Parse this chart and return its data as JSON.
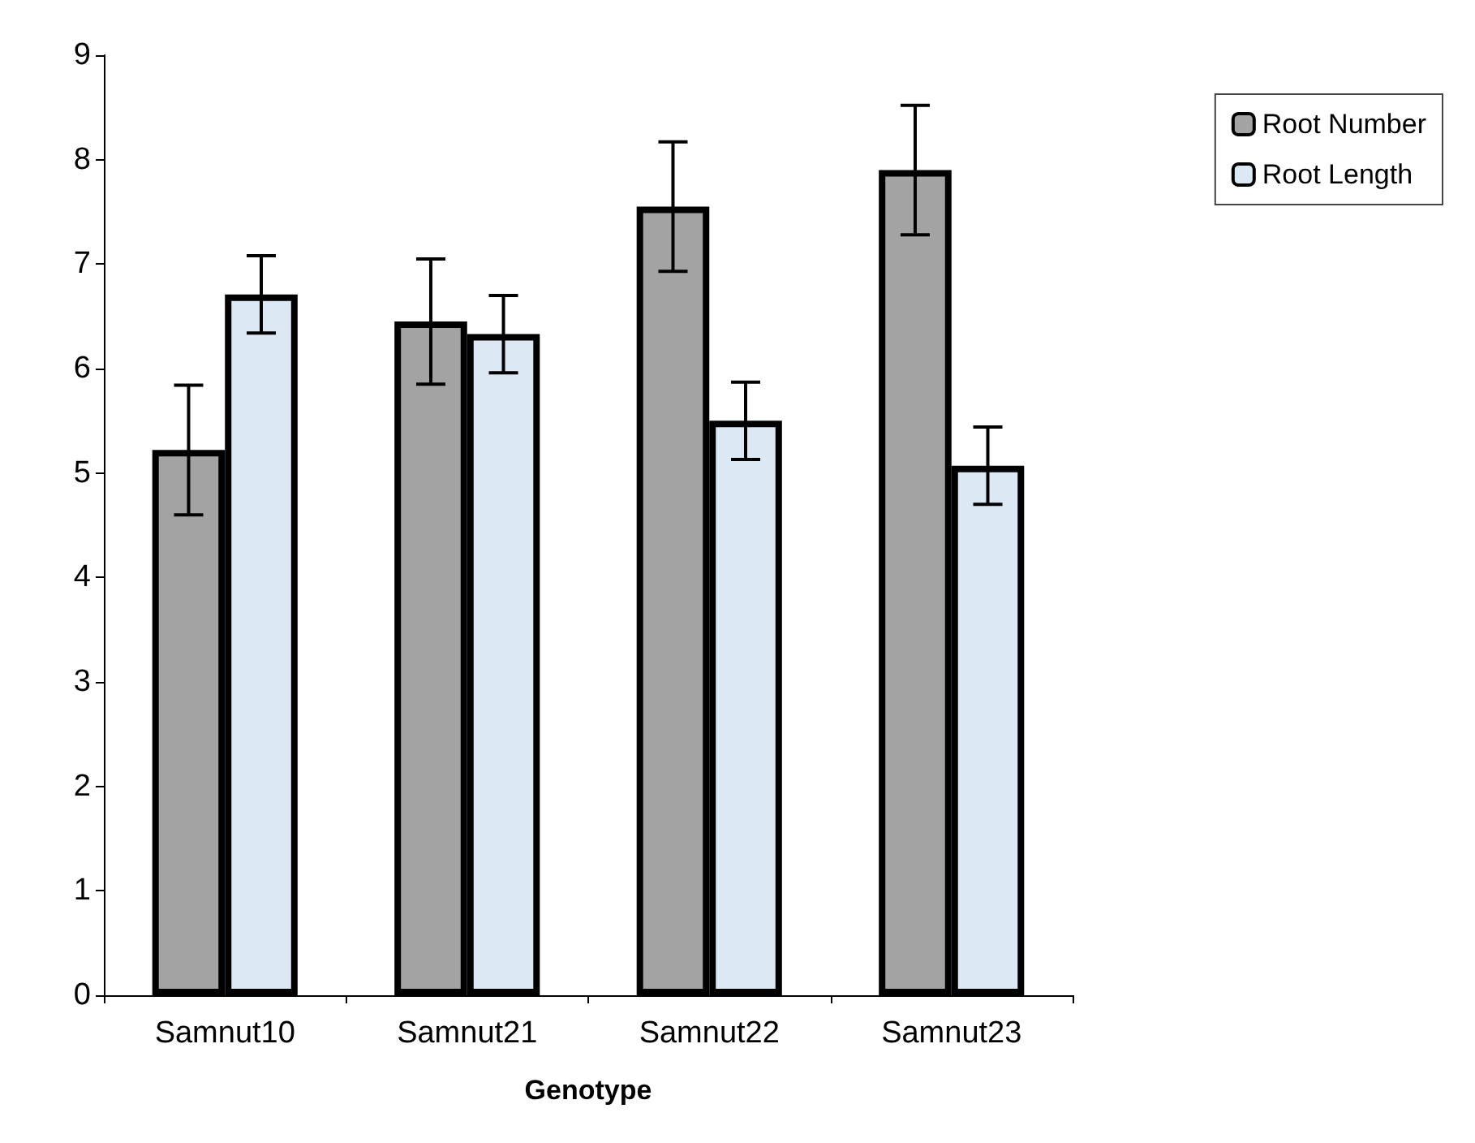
{
  "chart_data": {
    "type": "bar",
    "xlabel": "Genotype",
    "categories": [
      "Samnut10",
      "Samnut21",
      "Samnut22",
      "Samnut23"
    ],
    "series": [
      {
        "name": "Root Number",
        "color": "#a3a3a3",
        "values": [
          5.22,
          6.45,
          7.55,
          7.9
        ],
        "errors": [
          0.62,
          0.6,
          0.62,
          0.62
        ]
      },
      {
        "name": "Root Length",
        "color": "#dce9f5",
        "values": [
          6.71,
          6.33,
          5.5,
          5.07
        ],
        "errors": [
          0.37,
          0.37,
          0.37,
          0.37
        ]
      }
    ],
    "ylim": [
      0,
      9
    ],
    "yticks": [
      0,
      1,
      2,
      3,
      4,
      5,
      6,
      7,
      8,
      9
    ],
    "grid": false,
    "legend": "top right"
  }
}
